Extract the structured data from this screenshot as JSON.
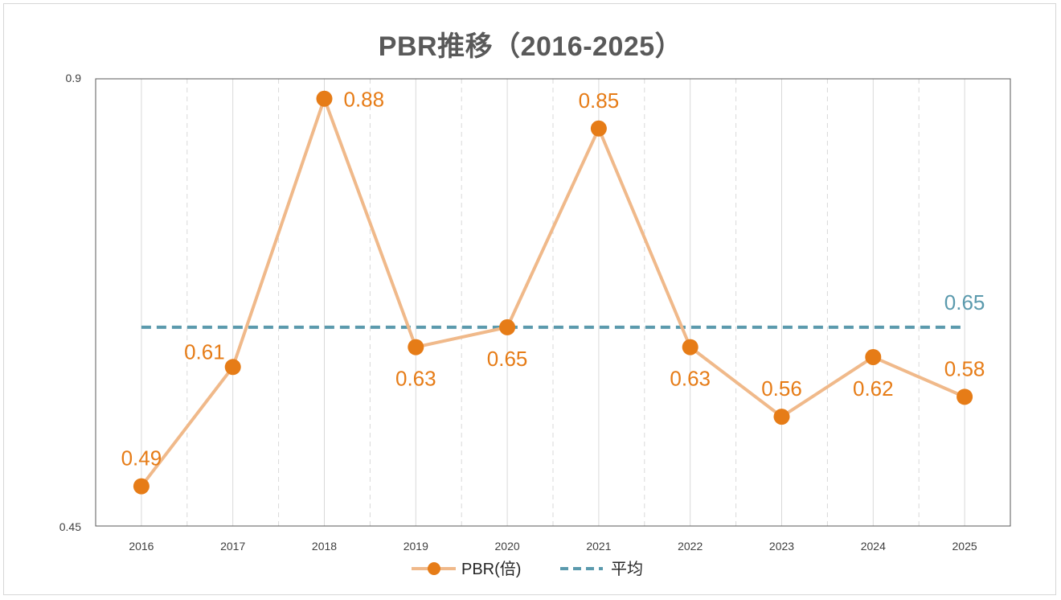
{
  "chart_data": {
    "type": "line",
    "title": "PBR推移（2016-2025）",
    "categories": [
      "2016",
      "2017",
      "2018",
      "2019",
      "2020",
      "2021",
      "2022",
      "2023",
      "2024",
      "2025"
    ],
    "series": [
      {
        "name": "PBR(倍)",
        "values": [
          0.49,
          0.61,
          0.88,
          0.63,
          0.65,
          0.85,
          0.63,
          0.56,
          0.62,
          0.58
        ],
        "labels": [
          "0.49",
          "0.61",
          "0.88",
          "0.63",
          "0.65",
          "0.85",
          "0.63",
          "0.56",
          "0.62",
          "0.58"
        ],
        "line_color": "#f0b98a",
        "marker_color": "#e67c17"
      },
      {
        "name": "平均",
        "value": 0.65,
        "label": "0.65",
        "style": "dashed",
        "color": "#5b9aad"
      }
    ],
    "ylim": [
      0.45,
      0.9
    ],
    "yticks": [
      "0.45",
      "0.9"
    ],
    "xlabel": "",
    "ylabel": "",
    "grid": "vertical",
    "legend": "bottom-center"
  }
}
